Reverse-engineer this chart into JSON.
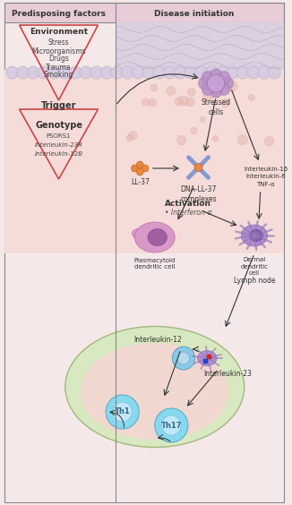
{
  "bg_color": "#f5e8e8",
  "header_bg": "#e8ccd8",
  "border_color": "#888888",
  "arrow_color": "#333333",
  "title_left": "Predisposing factors",
  "title_right": "Disease initiation",
  "env_title": "Environment",
  "env_items": [
    "Stress",
    "Microorganisms",
    "Drugs",
    "Trauma",
    "Smoking"
  ],
  "trigger_label": "Trigger",
  "genotype_label": "Genotype",
  "genotype_items": [
    "PSORS1",
    "Interleukin-23R",
    "Interleukin-12B"
  ],
  "stressed_cells": "Stressed\ncells",
  "ll37_label": "LL-37",
  "dna_ll37_label": "DNA-LL-37\ncomplexes",
  "activation_label": "Activation",
  "interferon_label": "Interferon-α",
  "plasmacytoid_label": "Plasmacytoid\ndendritic cell",
  "dermal_label": "Dermal\ndendritic\ncell",
  "lymph_label": "Lymph node",
  "interleukin12_label": "Interleukin-12",
  "interleukin23_label": "Interleukin-23",
  "th1_label": "Th1",
  "th17_label": "Th17",
  "cytokines": "Interleukin-1β\nInterleukin-6\nTNF-α",
  "skin_top_color": "#dcd0e0",
  "skin_wave_color": "#c0b0cc",
  "epidermis_cell_color": "#d8cce0",
  "epidermis_cell_edge": "#b8aac8",
  "dermis_color": "#f5dcd8",
  "dermis_dot_color": "#e8b8b0",
  "dermis_dot_edge": "#c89898",
  "stressed_cell_color": "#b890c8",
  "stressed_cell_edge": "#9870a8",
  "stressed_cell_main": "#c8a0d8",
  "ll37_color": "#e88840",
  "ll37_edge": "#c06020",
  "dna_line_color": "#8898d0",
  "pdc_color": "#d898c8",
  "pdc_edge": "#b870a8",
  "pdc_nucleus": "#a060a0",
  "pdc_nuc_edge": "#804888",
  "ddc_spine_color": "#9878b8",
  "ddc_color": "#b090d0",
  "ddc_edge": "#9070b0",
  "ddc_nucleus": "#7050a0",
  "ddc_nuc_edge": "#503080",
  "lymph_color": "#d8e8c0",
  "lymph_edge": "#a0b880",
  "lymph_inner_color": "#f0d8d0",
  "tc_color": "#88c8e8",
  "tc_edge": "#5898b8",
  "tc_nuc_color": "#b8d8f0",
  "tc_nuc_edge": "#7898b8",
  "th_color": "#88d8f0",
  "th_edge": "#50a8c8",
  "th_nuc_color": "#c0e8f8",
  "th_nuc_edge": "#70b8d8",
  "th_text_color": "#336688",
  "figsize": [
    3.26,
    5.64
  ],
  "dpi": 100
}
